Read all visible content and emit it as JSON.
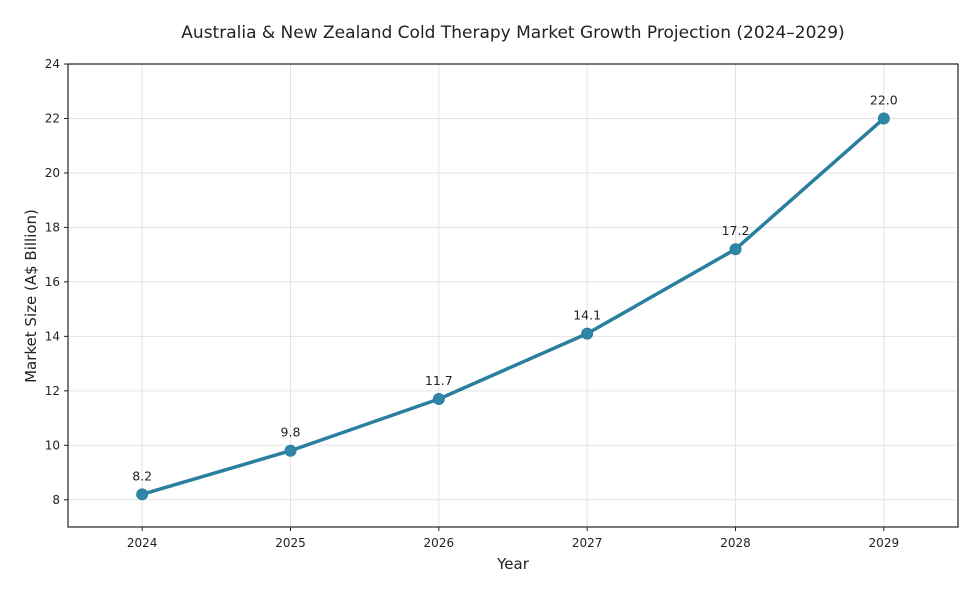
{
  "chart_data": {
    "type": "line",
    "title": "Australia & New Zealand Cold Therapy Market Growth Projection (2024–2029)",
    "xlabel": "Year",
    "ylabel": "Market Size (A$ Billion)",
    "categories": [
      "2024",
      "2025",
      "2026",
      "2027",
      "2028",
      "2029"
    ],
    "x": [
      2024,
      2025,
      2026,
      2027,
      2028,
      2029
    ],
    "series": [
      {
        "values": [
          8.2,
          9.8,
          11.7,
          14.1,
          17.2,
          22.0
        ],
        "labels": [
          "8.2",
          "9.8",
          "11.7",
          "14.1",
          "17.2",
          "22.0"
        ]
      }
    ],
    "xlim": [
      2023.5,
      2029.5
    ],
    "ylim": [
      7,
      24
    ],
    "yticks": [
      8,
      10,
      12,
      14,
      16,
      18,
      20,
      22,
      24
    ],
    "grid": true,
    "legend": "none",
    "colors": {
      "line": "#2a7f9e",
      "marker": "#2f86a8",
      "grid": "#e3e3e3"
    }
  }
}
